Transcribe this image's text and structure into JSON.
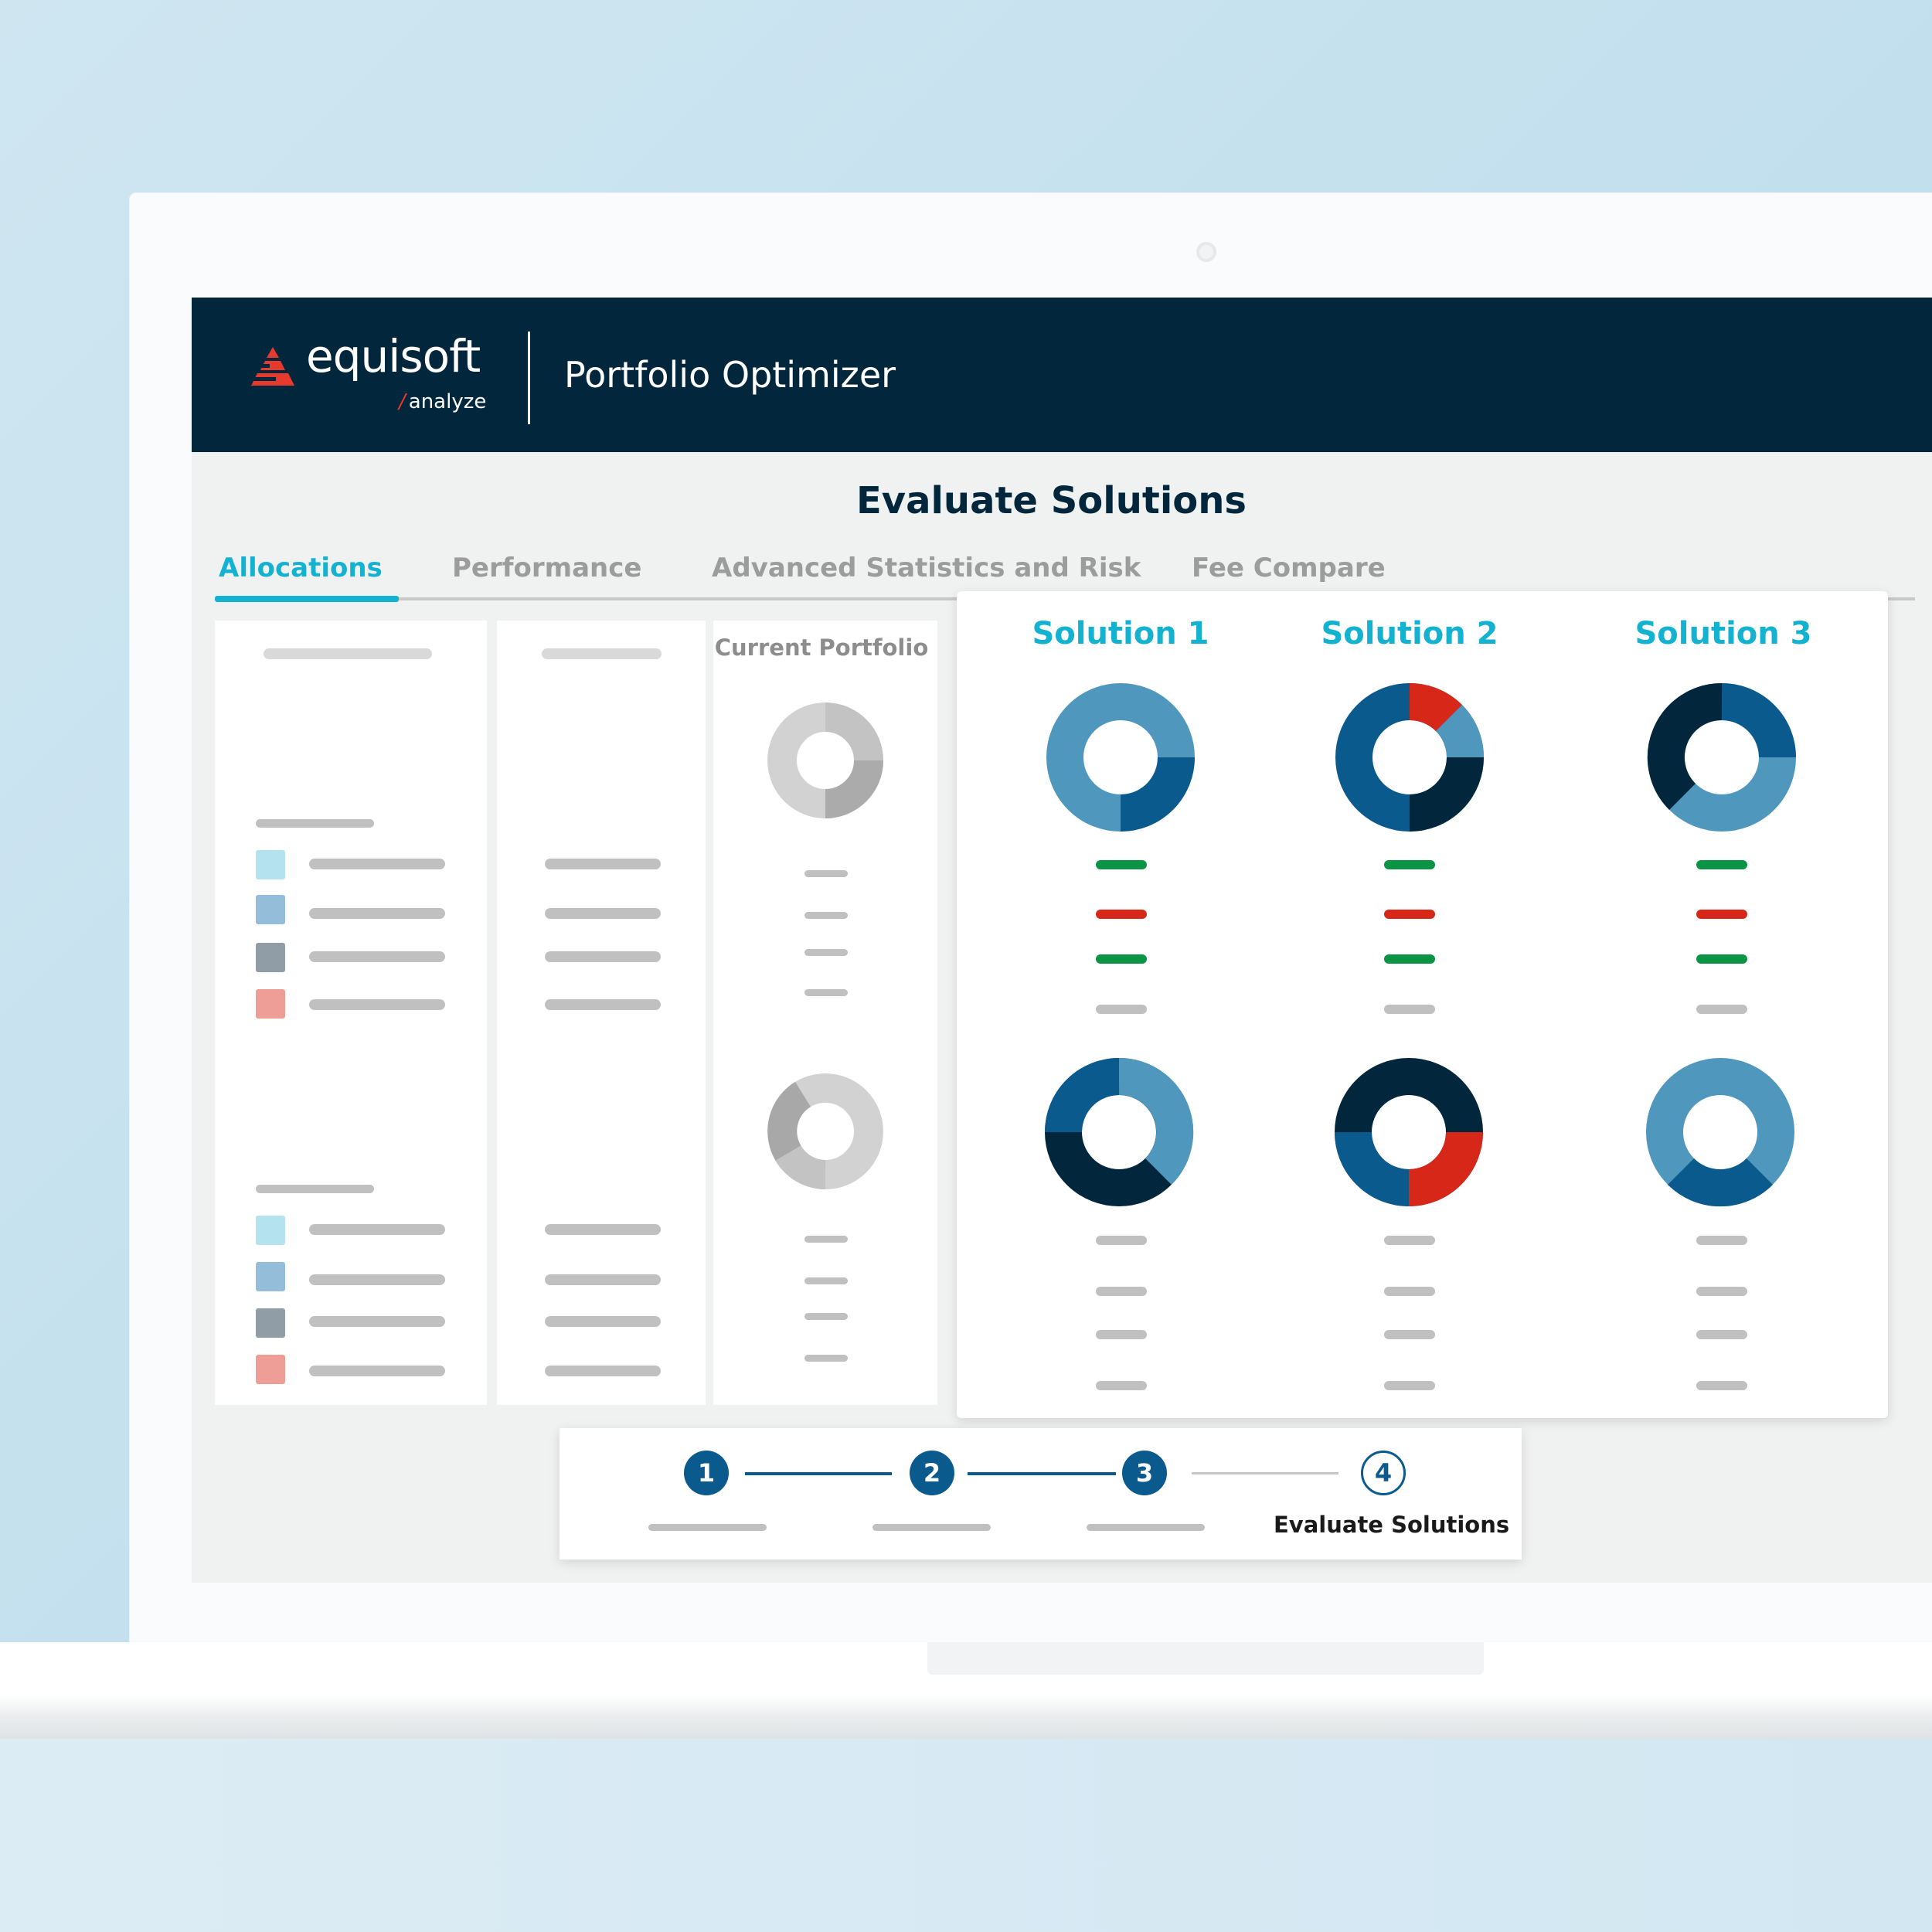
{
  "brand": {
    "name": "equisoft",
    "sub": "analyze",
    "logo_color": "#e8392d"
  },
  "app_title": "Portfolio Optimizer",
  "page_title": "Evaluate Solutions",
  "tabs": [
    {
      "label": "Allocations",
      "active": true
    },
    {
      "label": "Performance",
      "active": false
    },
    {
      "label": "Advanced Statistics and Risk",
      "active": false
    },
    {
      "label": "Fee Compare",
      "active": false
    }
  ],
  "current_portfolio": {
    "title": "Current Portfolio"
  },
  "solutions": [
    {
      "title": "Solution 1"
    },
    {
      "title": "Solution 2"
    },
    {
      "title": "Solution 3"
    }
  ],
  "steps": [
    {
      "number": "1",
      "completed": true
    },
    {
      "number": "2",
      "completed": true
    },
    {
      "number": "3",
      "completed": true
    },
    {
      "number": "4",
      "completed": false,
      "label": "Evaluate Solutions"
    }
  ],
  "colors": {
    "header_bg": "#02263b",
    "accent": "#14b2d1",
    "navy": "#02263b",
    "blue": "#0a5a8e",
    "light_blue": "#4f97bd",
    "red": "#d62718",
    "green": "#0b9444",
    "swatch_1": "#b5e2ef",
    "swatch_2": "#93bdd8",
    "swatch_3": "#909da6",
    "swatch_4": "#ee9e97"
  }
}
